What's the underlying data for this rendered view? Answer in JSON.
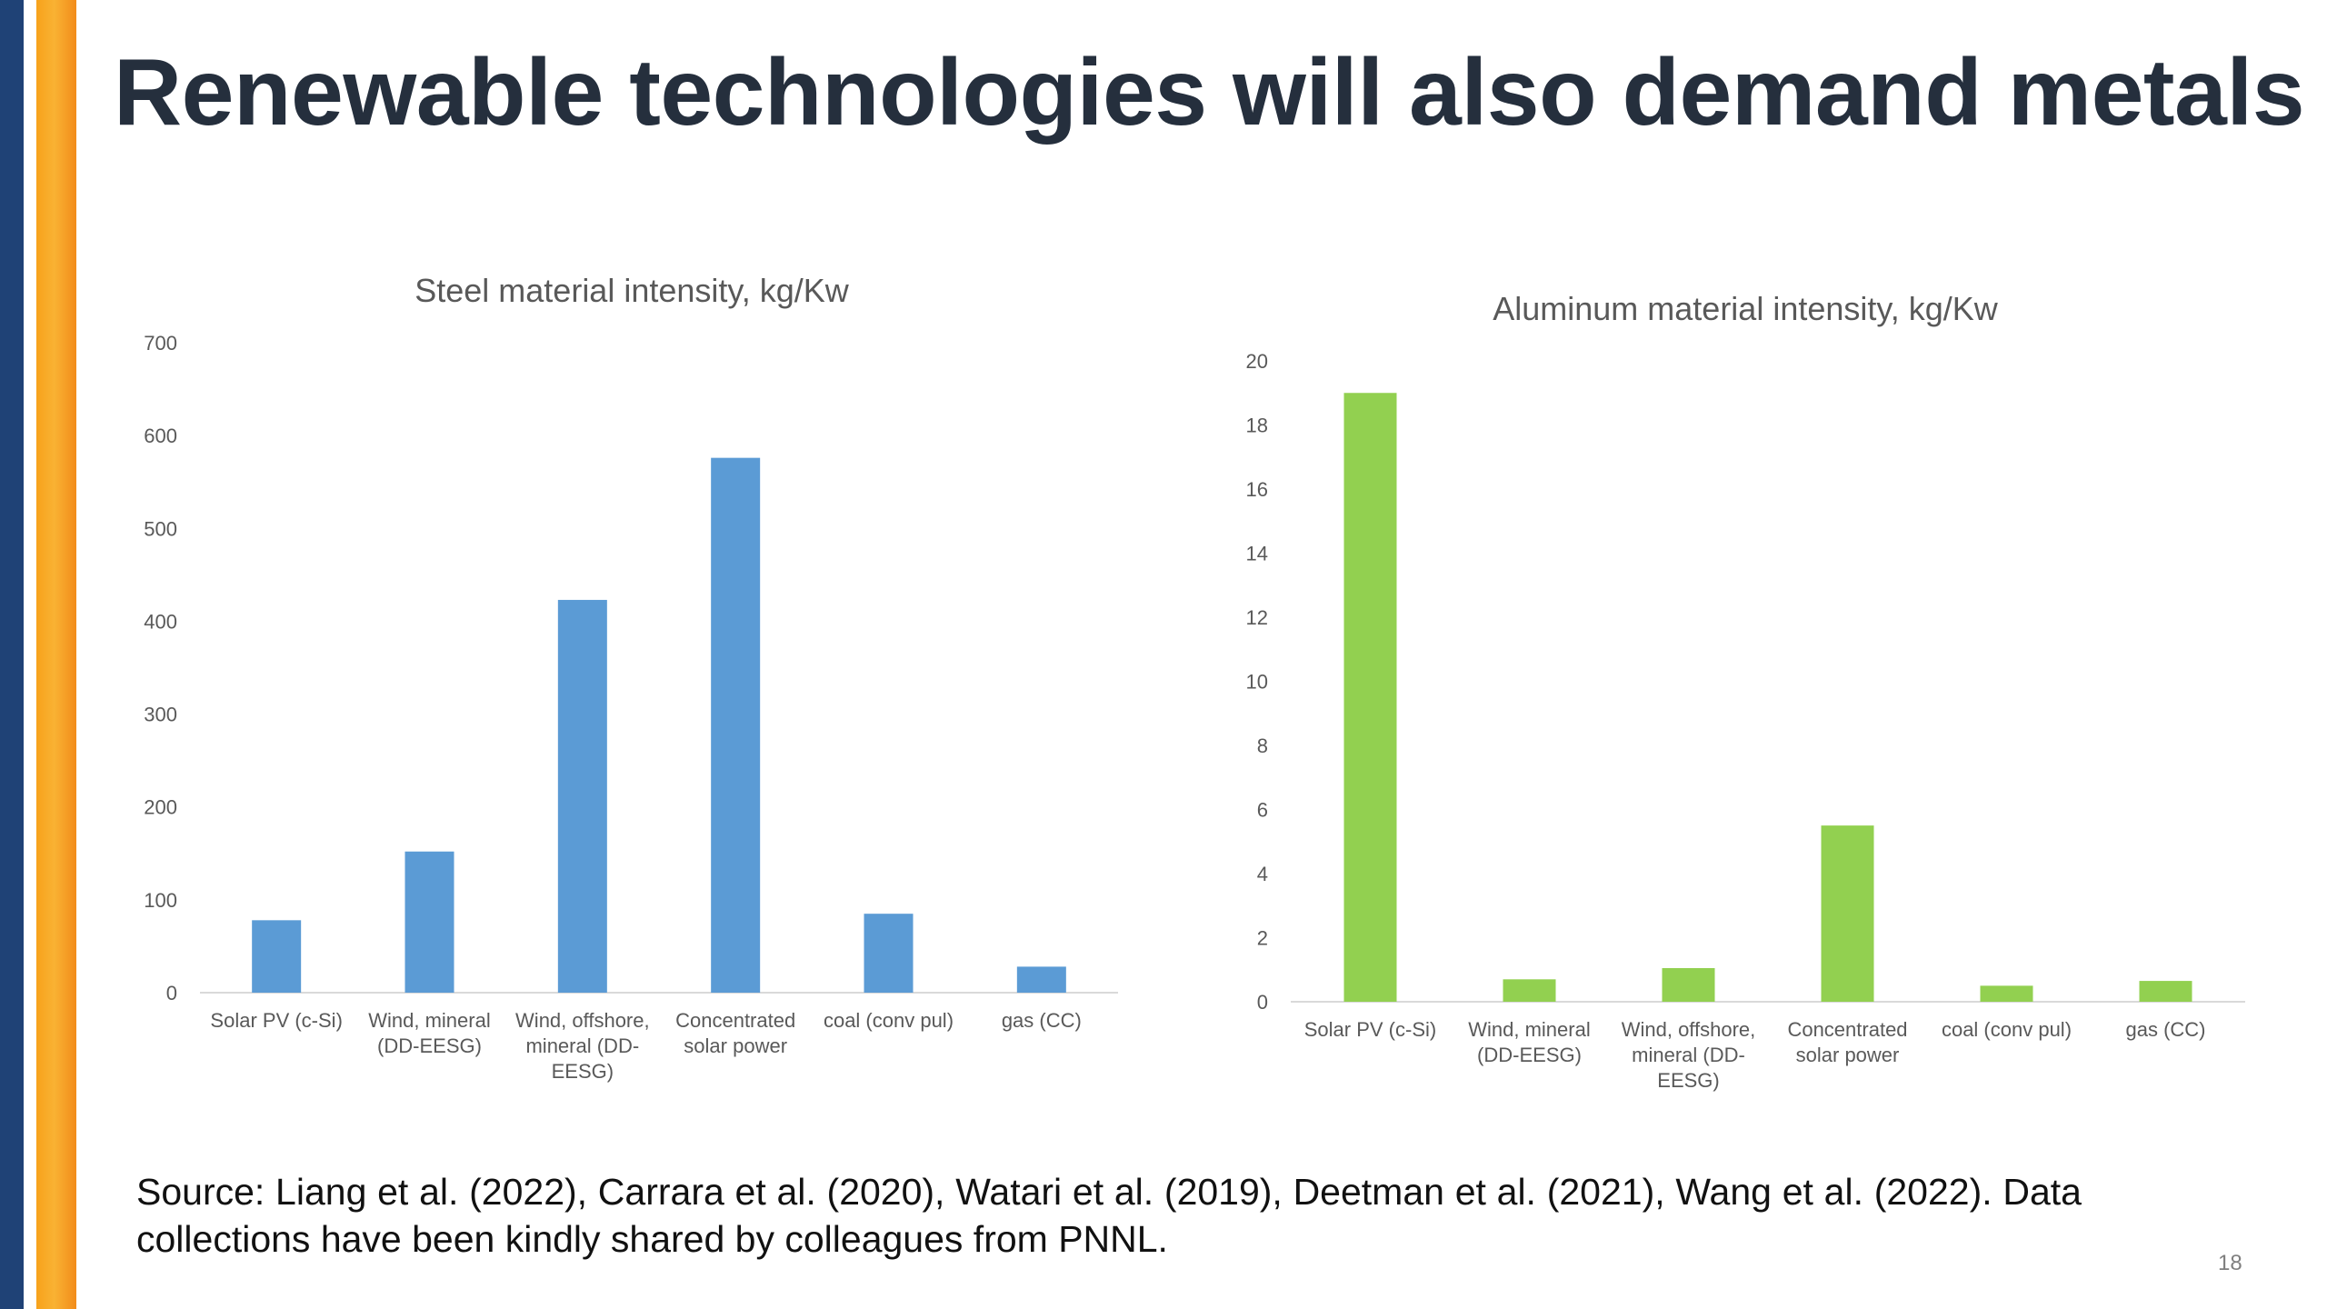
{
  "slide": {
    "title": "Renewable technologies will also demand metals",
    "source": "Source: Liang et al. (2022), Carrara et al. (2020), Watari et al. (2019),  Deetman et al. (2021), Wang et al. (2022). Data collections have been kindly shared by colleagues from PNNL.",
    "page_number": "18",
    "colors": {
      "stripe_blue": "#1f4276",
      "stripe_orange": "#f9b233"
    }
  },
  "chart_data": [
    {
      "type": "bar",
      "title": "Steel material intensity, kg/Kw",
      "categories": [
        [
          "Solar PV (c-Si)"
        ],
        [
          "Wind, mineral",
          "(DD-EESG)"
        ],
        [
          "Wind, offshore,",
          "mineral (DD-",
          "EESG)"
        ],
        [
          "Concentrated",
          "solar power"
        ],
        [
          "coal (conv pul)"
        ],
        [
          "gas (CC)"
        ]
      ],
      "values": [
        78,
        152,
        423,
        576,
        85,
        28
      ],
      "ylim": [
        0,
        700
      ],
      "yticks": [
        0,
        100,
        200,
        300,
        400,
        500,
        600,
        700
      ],
      "color": "#5b9bd5",
      "xlabel": "",
      "ylabel": "",
      "grid": false,
      "legend": "none"
    },
    {
      "type": "bar",
      "title": "Aluminum material intensity, kg/Kw",
      "categories": [
        [
          "Solar PV (c-Si)"
        ],
        [
          "Wind, mineral",
          "(DD-EESG)"
        ],
        [
          "Wind, offshore,",
          "mineral (DD-",
          "EESG)"
        ],
        [
          "Concentrated",
          "solar power"
        ],
        [
          "coal (conv pul)"
        ],
        [
          "gas (CC)"
        ]
      ],
      "values": [
        19.0,
        0.7,
        1.05,
        5.5,
        0.5,
        0.65
      ],
      "ylim": [
        0,
        20
      ],
      "yticks": [
        0,
        2,
        4,
        6,
        8,
        10,
        12,
        14,
        16,
        18,
        20
      ],
      "color": "#92d050",
      "xlabel": "",
      "ylabel": "",
      "grid": false,
      "legend": "none"
    }
  ]
}
